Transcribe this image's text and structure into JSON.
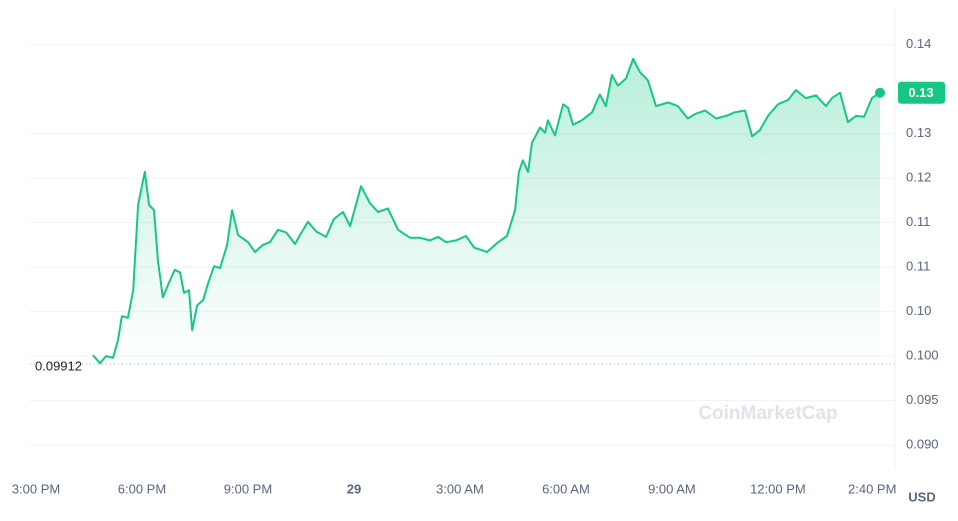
{
  "chart_data": {
    "type": "line",
    "currency": "USD",
    "watermark": "CoinMarketCap",
    "color": "#16c784",
    "grid": true,
    "open_price": 0.09912,
    "current_price": {
      "value": 0.1296,
      "label": "0.13"
    },
    "ylim": [
      0.0872,
      0.1389
    ],
    "yticks": [
      {
        "value": 0.09,
        "label": "0.090"
      },
      0.095,
      {
        "value": 0.1,
        "label": "0.100"
      },
      {
        "value": 0.105,
        "label": "0.10"
      },
      0.11,
      {
        "value": 0.115,
        "label": "0.11"
      },
      0.12,
      {
        "value": 0.125,
        "label": "0.13"
      },
      {
        "value": 0.135,
        "label": "0.14"
      }
    ],
    "xlim": [
      14.83,
      38.89
    ],
    "xticks": [
      {
        "value": 15,
        "label": "3:00 PM"
      },
      {
        "value": 18,
        "label": "6:00 PM"
      },
      {
        "value": 21,
        "label": "9:00 PM"
      },
      {
        "value": 24,
        "label": "29"
      },
      {
        "value": 27,
        "label": "3:00 AM"
      },
      {
        "value": 30,
        "label": "6:00 AM"
      },
      {
        "value": 33,
        "label": "9:00 AM"
      },
      {
        "value": 36,
        "label": "12:00 PM"
      },
      {
        "value": 38.67,
        "label": "2:40 PM"
      }
    ],
    "x": [
      16.61,
      16.81,
      16.98,
      17.18,
      17.32,
      17.43,
      17.6,
      17.75,
      17.89,
      18.08,
      18.2,
      18.34,
      18.45,
      18.59,
      18.79,
      18.93,
      19.08,
      19.19,
      19.33,
      19.42,
      19.56,
      19.73,
      19.87,
      20.04,
      20.21,
      20.41,
      20.55,
      20.72,
      21.0,
      21.2,
      21.42,
      21.62,
      21.85,
      22.08,
      22.33,
      22.47,
      22.7,
      22.93,
      23.21,
      23.43,
      23.69,
      23.89,
      24.2,
      24.45,
      24.68,
      24.96,
      25.25,
      25.59,
      25.87,
      26.15,
      26.38,
      26.61,
      26.89,
      27.17,
      27.4,
      27.77,
      28.05,
      28.33,
      28.56,
      28.67,
      28.78,
      28.93,
      29.04,
      29.27,
      29.41,
      29.49,
      29.69,
      29.92,
      30.06,
      30.2,
      30.45,
      30.74,
      30.96,
      31.13,
      31.3,
      31.47,
      31.7,
      31.9,
      32.1,
      32.32,
      32.55,
      32.89,
      33.17,
      33.45,
      33.65,
      33.94,
      34.25,
      34.53,
      34.78,
      35.07,
      35.27,
      35.49,
      35.72,
      36.0,
      36.29,
      36.51,
      36.79,
      37.08,
      37.36,
      37.53,
      37.76,
      37.98,
      38.21,
      38.44,
      38.66,
      38.89
    ],
    "values": [
      0.1001,
      0.0992,
      0.1,
      0.0998,
      0.1018,
      0.1045,
      0.1043,
      0.1074,
      0.117,
      0.1207,
      0.117,
      0.1164,
      0.1108,
      0.1066,
      0.1085,
      0.1097,
      0.1094,
      0.1071,
      0.1074,
      0.1029,
      0.1057,
      0.1063,
      0.1082,
      0.1101,
      0.1099,
      0.1125,
      0.1164,
      0.1136,
      0.1128,
      0.1117,
      0.1125,
      0.1128,
      0.1142,
      0.1139,
      0.1126,
      0.1136,
      0.1151,
      0.114,
      0.1134,
      0.1154,
      0.1162,
      0.1146,
      0.1191,
      0.1172,
      0.1162,
      0.1166,
      0.1142,
      0.1133,
      0.1133,
      0.113,
      0.1134,
      0.1128,
      0.113,
      0.1135,
      0.1122,
      0.1117,
      0.1127,
      0.1135,
      0.1164,
      0.1207,
      0.122,
      0.1207,
      0.124,
      0.1257,
      0.1251,
      0.1265,
      0.1248,
      0.1283,
      0.1279,
      0.126,
      0.1265,
      0.1274,
      0.1294,
      0.1281,
      0.1316,
      0.1304,
      0.1312,
      0.1334,
      0.1319,
      0.131,
      0.1281,
      0.1285,
      0.1281,
      0.1267,
      0.1272,
      0.1276,
      0.1267,
      0.127,
      0.1274,
      0.1276,
      0.1247,
      0.1254,
      0.127,
      0.1283,
      0.1288,
      0.1299,
      0.129,
      0.1293,
      0.1281,
      0.129,
      0.1296,
      0.1263,
      0.127,
      0.1269,
      0.129,
      0.1296
    ]
  }
}
